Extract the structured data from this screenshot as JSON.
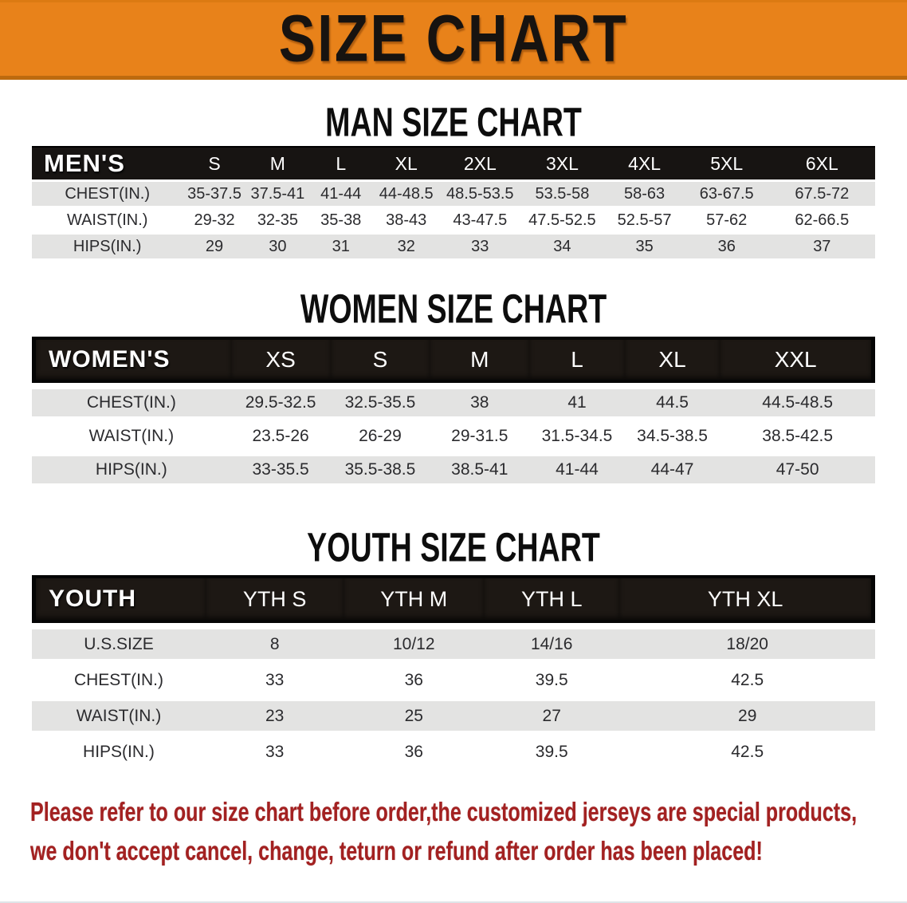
{
  "banner": {
    "title": "SIZE CHART",
    "bg_color": "#E8821A",
    "title_color": "#171310"
  },
  "colors": {
    "table_header_bg": "#171412",
    "framed_header_bg": "#1D1814",
    "row_alt_gray": "#E3E3E2",
    "disclaimer_red": "#A32121"
  },
  "sections": [
    {
      "heading": "MAN SIZE CHART",
      "table": {
        "header_label": "MEN'S",
        "columns": [
          "S",
          "M",
          "L",
          "XL",
          "2XL",
          "3XL",
          "4XL",
          "5XL",
          "6XL"
        ],
        "rows": [
          {
            "label": "CHEST(IN.)",
            "values": [
              "35-37.5",
              "37.5-41",
              "41-44",
              "44-48.5",
              "48.5-53.5",
              "53.5-58",
              "58-63",
              "63-67.5",
              "67.5-72"
            ]
          },
          {
            "label": "WAIST(IN.)",
            "values": [
              "29-32",
              "32-35",
              "35-38",
              "38-43",
              "43-47.5",
              "47.5-52.5",
              "52.5-57",
              "57-62",
              "62-66.5"
            ]
          },
          {
            "label": "HIPS(IN.)",
            "values": [
              "29",
              "30",
              "31",
              "32",
              "33",
              "34",
              "35",
              "36",
              "37"
            ]
          }
        ]
      }
    },
    {
      "heading": "WOMEN SIZE CHART",
      "table": {
        "header_label": "WOMEN'S",
        "columns": [
          "XS",
          "S",
          "M",
          "L",
          "XL",
          "XXL"
        ],
        "rows": [
          {
            "label": "CHEST(IN.)",
            "values": [
              "29.5-32.5",
              "32.5-35.5",
              "38",
              "41",
              "44.5",
              "44.5-48.5"
            ]
          },
          {
            "label": "WAIST(IN.)",
            "values": [
              "23.5-26",
              "26-29",
              "29-31.5",
              "31.5-34.5",
              "34.5-38.5",
              "38.5-42.5"
            ]
          },
          {
            "label": "HIPS(IN.)",
            "values": [
              "33-35.5",
              "35.5-38.5",
              "38.5-41",
              "41-44",
              "44-47",
              "47-50"
            ]
          }
        ]
      }
    },
    {
      "heading": "YOUTH SIZE CHART",
      "table": {
        "header_label": "YOUTH",
        "columns": [
          "YTH S",
          "YTH M",
          "YTH L",
          "YTH XL"
        ],
        "rows": [
          {
            "label": "U.S.SIZE",
            "values": [
              "8",
              "10/12",
              "14/16",
              "18/20"
            ]
          },
          {
            "label": "CHEST(IN.)",
            "values": [
              "33",
              "36",
              "39.5",
              "42.5"
            ]
          },
          {
            "label": "WAIST(IN.)",
            "values": [
              "23",
              "25",
              "27",
              "29"
            ]
          },
          {
            "label": "HIPS(IN.)",
            "values": [
              "33",
              "36",
              "39.5",
              "42.5"
            ]
          }
        ]
      }
    }
  ],
  "disclaimer": {
    "line1": "Please refer to our size chart before order,the customized jerseys are special products,",
    "line2": "we don't accept cancel, change, teturn or refund after order has been placed!"
  }
}
